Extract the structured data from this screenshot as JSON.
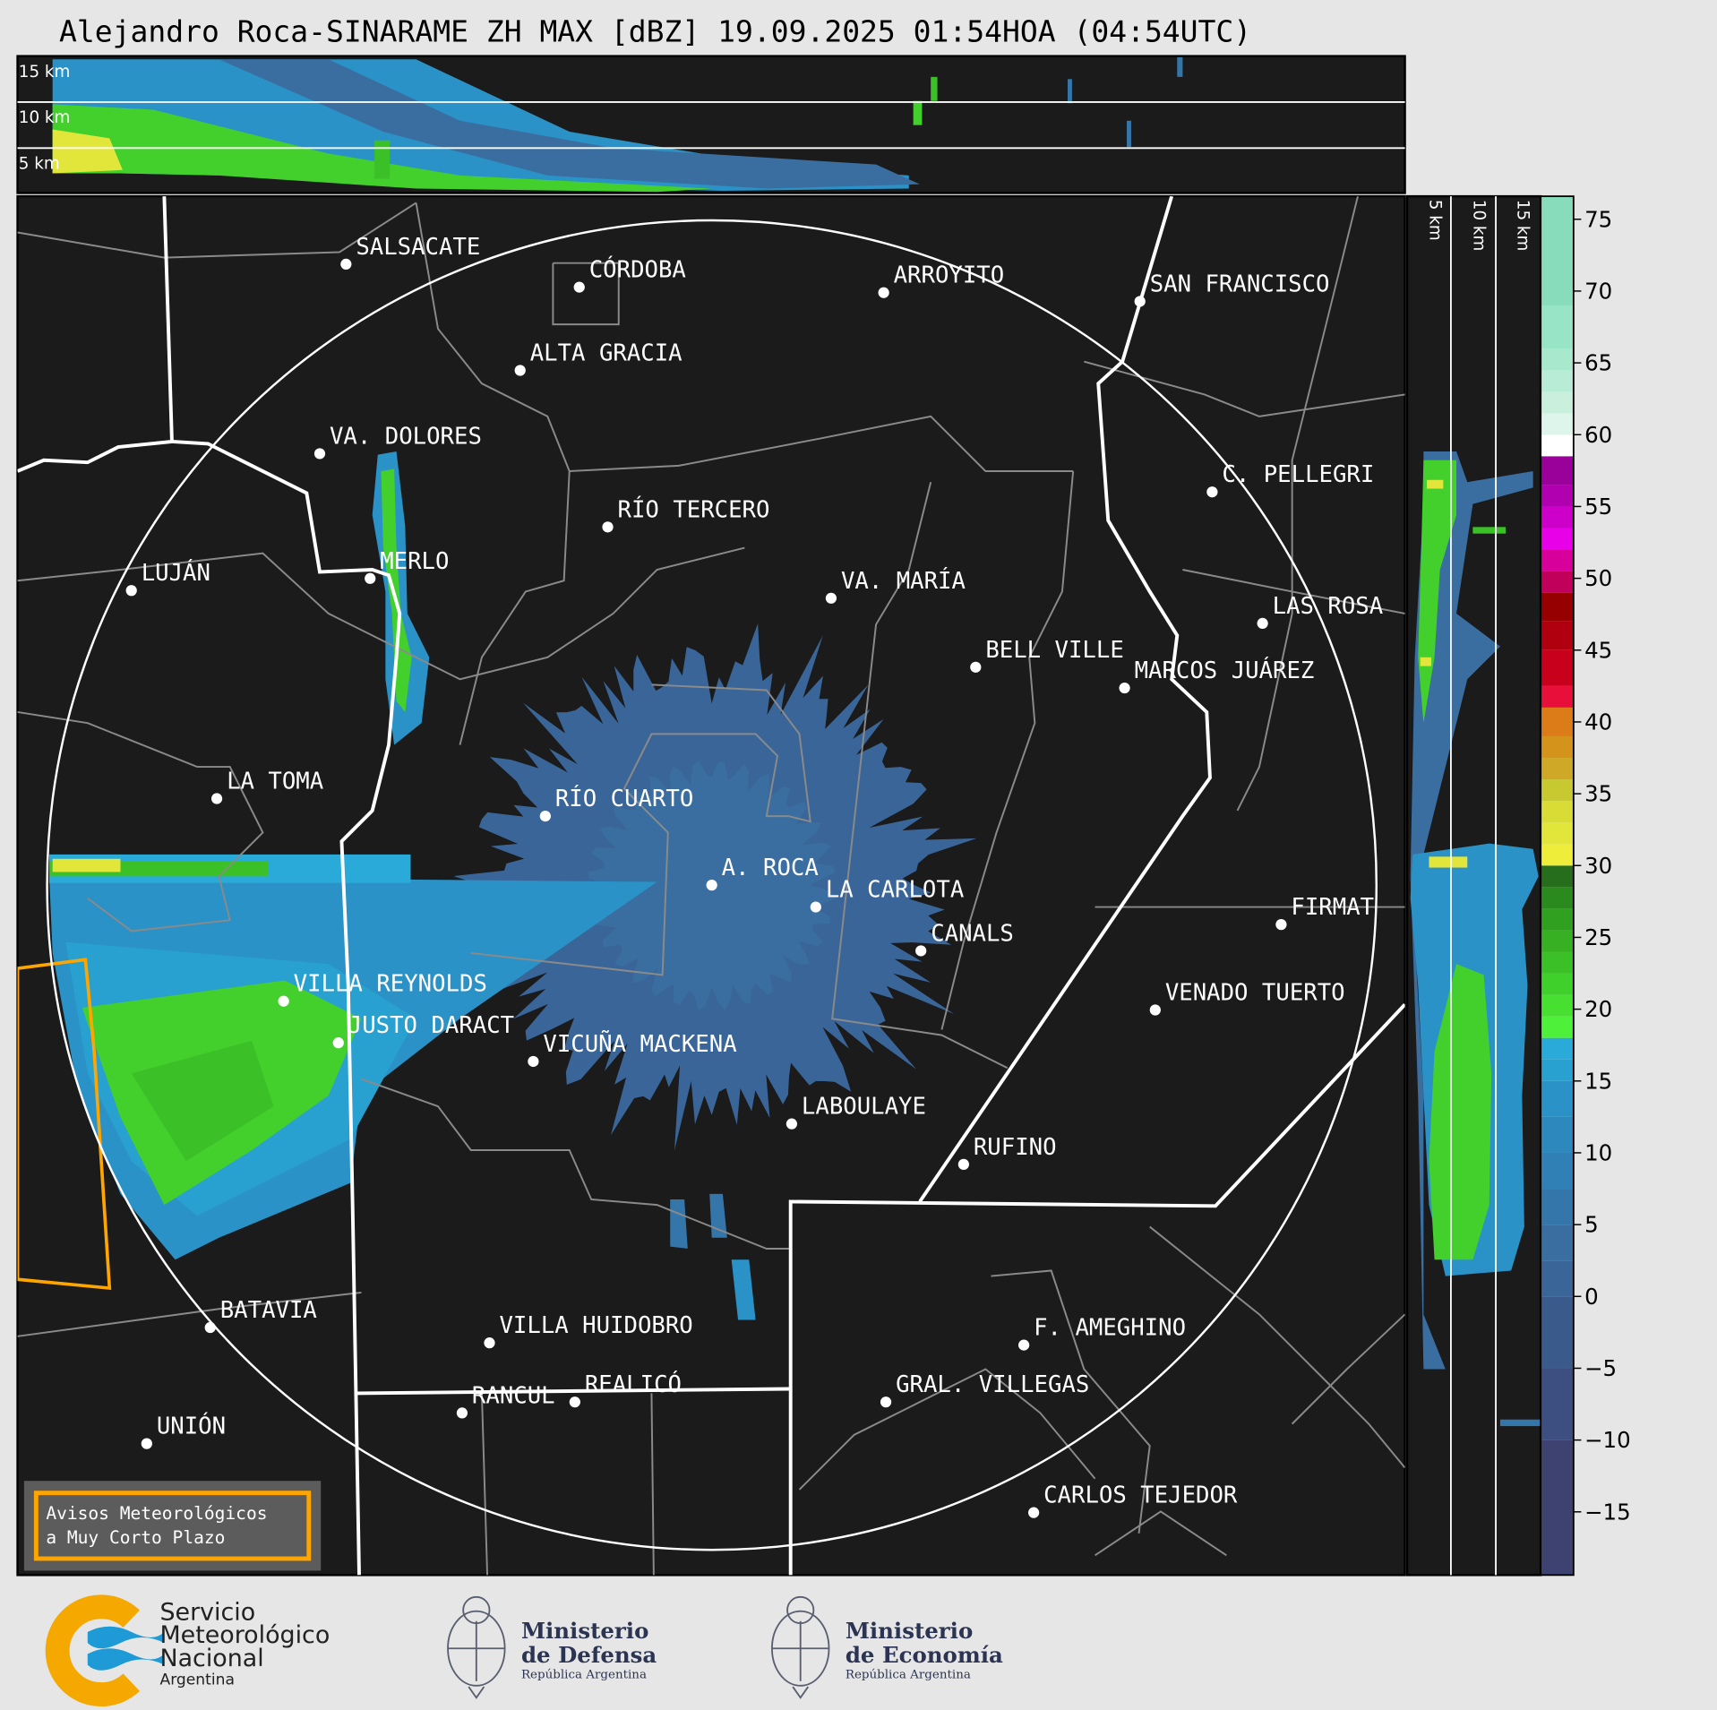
{
  "title": "Alejandro Roca-SINARAME ZH MAX [dBZ] 19.09.2025 01:54HOA (04:54UTC)",
  "top_panel": {
    "height_labels": [
      "15 km",
      "10 km",
      "5 km"
    ]
  },
  "side_panel": {
    "height_labels": [
      "5 km",
      "10 km",
      "15 km"
    ]
  },
  "map": {
    "radar_site": "A. ROCA",
    "cities": [
      "SALSACATE",
      "CÓRDOBA",
      "ARROYITO",
      "SAN FRANCISCO",
      "ALTA GRACIA",
      "VA. DOLORES",
      "C. PELLEGRI",
      "RÍO TERCERO",
      "MERLO",
      "LUJÁN",
      "VA. MARÍA",
      "LAS ROSA",
      "BELL VILLE",
      "MARCOS JUÁREZ",
      "LA TOMA",
      "RÍO CUARTO",
      "A. ROCA",
      "LA CARLOTA",
      "FIRMAT",
      "CANALS",
      "VILLA REYNOLDS",
      "VENADO TUERTO",
      "JUSTO DARACT",
      "VICUÑA MACKENA",
      "LABOULAYE",
      "RUFINO",
      "BATAVIA",
      "VILLA HUIDOBRO",
      "F. AMEGHINO",
      "RANCUL",
      "REALICÓ",
      "GRAL. VILLEGAS",
      "UNIÓN",
      "CARLOS TEJEDOR"
    ],
    "warning_box": {
      "line1": "Avisos Meteorológicos",
      "line2": "a Muy Corto Plazo",
      "color": "#ffa500"
    }
  },
  "colorbar": {
    "unit": "dBZ",
    "range": [
      -19.4,
      76.6
    ],
    "ticks": [
      "75",
      "70",
      "65",
      "60",
      "55",
      "50",
      "45",
      "40",
      "35",
      "30",
      "25",
      "20",
      "15",
      "10",
      "5",
      "0",
      "−5",
      "−10",
      "−15"
    ],
    "tick_values": [
      75,
      70,
      65,
      60,
      55,
      50,
      45,
      40,
      35,
      30,
      25,
      20,
      15,
      10,
      5,
      0,
      -5,
      -10,
      -15
    ],
    "levels": [
      [
        -20,
        "#3e4270"
      ],
      [
        -10,
        "#3d4f80"
      ],
      [
        -5,
        "#3a5a8c"
      ],
      [
        0,
        "#3a6598"
      ],
      [
        2.5,
        "#3a6ea0"
      ],
      [
        5,
        "#3576aa"
      ],
      [
        7.5,
        "#3080b5"
      ],
      [
        10,
        "#2c88bd"
      ],
      [
        12.5,
        "#2a92c6"
      ],
      [
        15,
        "#28a0d0"
      ],
      [
        16.5,
        "#2aaad8"
      ],
      [
        18,
        "#4ef03a"
      ],
      [
        19.5,
        "#48e030"
      ],
      [
        21,
        "#40d02c"
      ],
      [
        22.5,
        "#3cc028"
      ],
      [
        24,
        "#38b024"
      ],
      [
        25.5,
        "#30a020"
      ],
      [
        27,
        "#2a8a1e"
      ],
      [
        28.5,
        "#266e1c"
      ],
      [
        30,
        "#eeee3a"
      ],
      [
        31.5,
        "#e2e63a"
      ],
      [
        33,
        "#d8dc34"
      ],
      [
        34.5,
        "#c8c830"
      ],
      [
        36,
        "#d0a828"
      ],
      [
        37.5,
        "#d4941c"
      ],
      [
        39,
        "#dc7c18"
      ],
      [
        41,
        "#e8103a"
      ],
      [
        42.5,
        "#c8001c"
      ],
      [
        45,
        "#b00010"
      ],
      [
        47,
        "#960000"
      ],
      [
        49,
        "#c0005a"
      ],
      [
        50.5,
        "#d8009a"
      ],
      [
        52,
        "#e800e8"
      ],
      [
        53.5,
        "#cc00c8"
      ],
      [
        55,
        "#b000b0"
      ],
      [
        56.5,
        "#9a009a"
      ],
      [
        58.5,
        "#ffffff"
      ],
      [
        60,
        "#ddf5ea"
      ],
      [
        61.5,
        "#c8f0dc"
      ],
      [
        63,
        "#b8ecd6"
      ],
      [
        64.5,
        "#a8e8cc"
      ],
      [
        66,
        "#98e4c6"
      ],
      [
        69,
        "#88dcbc"
      ]
    ]
  },
  "logos": {
    "smn": {
      "line1": "Servicio",
      "line2": "Meteorológico",
      "line3": "Nacional",
      "line4": "Argentina"
    },
    "defensa": {
      "line1": "Ministerio",
      "line2": "de Defensa",
      "line3": "República Argentina"
    },
    "economia": {
      "line1": "Ministerio",
      "line2": "de Economía",
      "line3": "República Argentina"
    }
  },
  "colors": {
    "background": "#e6e6e6",
    "map": "#1b1b1b",
    "province_border": "#ffffff",
    "department_border": "#8a8a8a",
    "warning": "#ffa500",
    "smn_orange": "#f5a800",
    "smn_blue": "#1e9ad6",
    "ministry_navy": "#2b3452"
  }
}
